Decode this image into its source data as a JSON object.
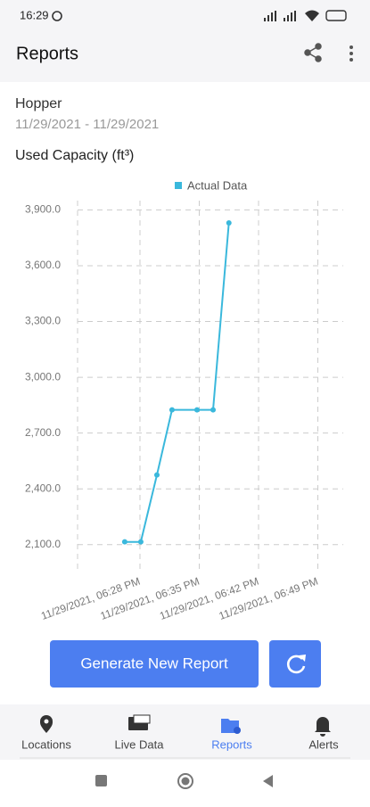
{
  "status_bar": {
    "time": "16:29"
  },
  "app_bar": {
    "title": "Reports"
  },
  "report": {
    "name": "Hopper",
    "date_range": "11/29/2021 - 11/29/2021",
    "metric": "Used Capacity (ft³)"
  },
  "chart_data": {
    "type": "line",
    "x": [
      "2021-11-29T18:26:12",
      "2021-11-29T18:28:06",
      "2021-11-29T18:30:00",
      "2021-11-29T18:31:47",
      "2021-11-29T18:34:44",
      "2021-11-29T18:36:38",
      "2021-11-29T18:38:30"
    ],
    "series": [
      {
        "name": "Actual Data",
        "color": "#3ab8dc",
        "values": [
          2115,
          2115,
          2475,
          2825,
          2825,
          2825,
          3830
        ]
      }
    ],
    "xlim": [
      "2021-11-29T18:20:38",
      "2021-11-29T18:52:00"
    ],
    "xticks": [
      {
        "value": "2021-11-29T18:28:00",
        "label": "11/29/2021, 06:28 PM"
      },
      {
        "value": "2021-11-29T18:35:00",
        "label": "11/29/2021, 06:35 PM"
      },
      {
        "value": "2021-11-29T18:42:00",
        "label": "11/29/2021, 06:42 PM"
      },
      {
        "value": "2021-11-29T18:49:00",
        "label": "11/29/2021, 06:49 PM"
      }
    ],
    "ylim": [
      1960,
      3950
    ],
    "yticks": [
      {
        "value": 2100,
        "label": "2,100.0"
      },
      {
        "value": 2400,
        "label": "2,400.0"
      },
      {
        "value": 2700,
        "label": "2,700.0"
      },
      {
        "value": 3000,
        "label": "3,000.0"
      },
      {
        "value": 3300,
        "label": "3,300.0"
      },
      {
        "value": 3600,
        "label": "3,600.0"
      },
      {
        "value": 3900,
        "label": "3,900.0"
      }
    ],
    "grid": true,
    "legend": "top"
  },
  "actions": {
    "generate": "Generate New Report"
  },
  "bottom_nav": [
    {
      "label": "Locations"
    },
    {
      "label": "Live Data"
    },
    {
      "label": "Reports"
    },
    {
      "label": "Alerts"
    }
  ]
}
